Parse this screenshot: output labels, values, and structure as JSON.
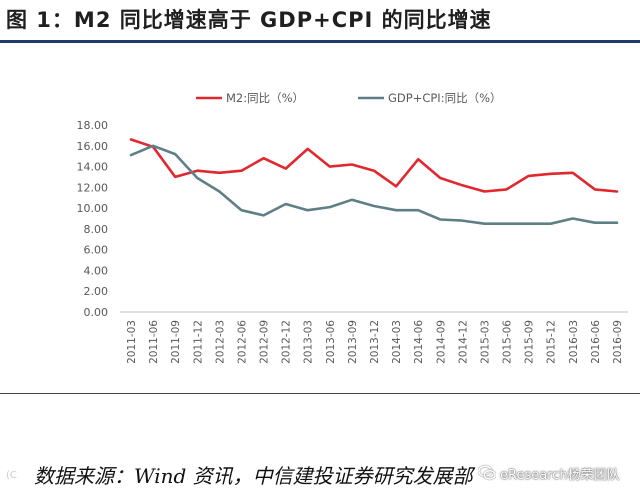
{
  "title": "图 1：M2 同比增速高于 GDP+CPI 的同比增速",
  "source": "数据来源：Wind 资讯，中信建投证券研究发展部",
  "watermark": "eResearch杨荣团队",
  "watermark_left": "(C",
  "colors": {
    "m2": "#e0282e",
    "gdpcpi": "#5f7f86",
    "axis": "#bfbfbf",
    "text": "#595959"
  },
  "chart_data": {
    "type": "line",
    "categories": [
      "2011-03",
      "2011-06",
      "2011-09",
      "2011-12",
      "2012-03",
      "2012-06",
      "2012-09",
      "2012-12",
      "2013-03",
      "2013-06",
      "2013-09",
      "2013-12",
      "2014-03",
      "2014-06",
      "2014-09",
      "2014-12",
      "2015-03",
      "2015-06",
      "2015-09",
      "2015-12",
      "2016-03",
      "2016-06",
      "2016-09"
    ],
    "y_ticks": [
      "0.00",
      "2.00",
      "4.00",
      "6.00",
      "8.00",
      "10.00",
      "12.00",
      "14.00",
      "16.00",
      "18.00"
    ],
    "ylim": [
      0,
      18
    ],
    "grid": false,
    "legend_position": "top",
    "series": [
      {
        "name": "M2:同比（%）",
        "values": [
          16.6,
          15.9,
          13.0,
          13.6,
          13.4,
          13.6,
          14.8,
          13.8,
          15.7,
          14.0,
          14.2,
          13.6,
          12.1,
          14.7,
          12.9,
          12.2,
          11.6,
          11.8,
          13.1,
          13.3,
          13.4,
          11.8,
          11.6
        ]
      },
      {
        "name": "GDP+CPI:同比（%）",
        "values": [
          15.1,
          16.0,
          15.2,
          12.9,
          11.6,
          9.8,
          9.3,
          10.4,
          9.8,
          10.1,
          10.8,
          10.2,
          9.8,
          9.8,
          8.9,
          8.8,
          8.5,
          8.5,
          8.5,
          8.5,
          9.0,
          8.6,
          8.6
        ]
      }
    ]
  }
}
